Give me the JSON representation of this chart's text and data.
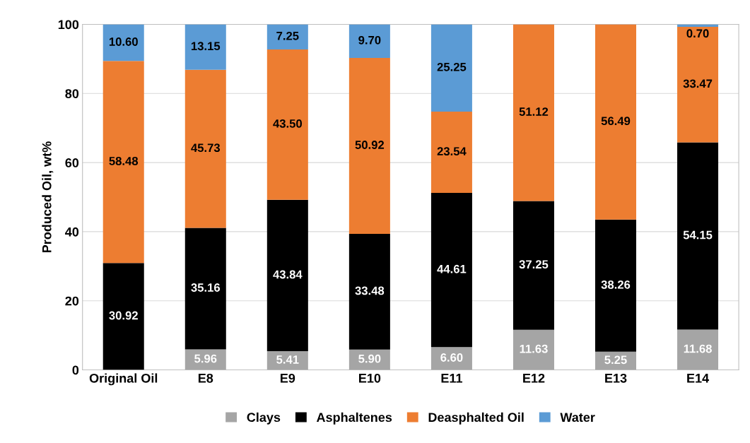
{
  "chart_data": {
    "type": "bar",
    "stacked": true,
    "ylabel": "Produced Oil, wt%",
    "categories": [
      "Original Oil",
      "E8",
      "E9",
      "E10",
      "E11",
      "E12",
      "E13",
      "E14"
    ],
    "series": [
      {
        "name": "Clays",
        "color": "#a5a5a5",
        "values": [
          null,
          5.96,
          5.41,
          5.9,
          6.6,
          11.63,
          5.25,
          11.68
        ],
        "value_labels": [
          null,
          "5.96",
          "5.41",
          "5.90",
          "6.60",
          "11.63",
          "5.25",
          "11.68"
        ]
      },
      {
        "name": "Asphaltenes",
        "color": "#000000",
        "values": [
          30.92,
          35.16,
          43.84,
          33.48,
          44.61,
          37.25,
          38.26,
          54.15
        ],
        "value_labels": [
          "30.92",
          "35.16",
          "43.84",
          "33.48",
          "44.61",
          "37.25",
          "38.26",
          "54.15"
        ]
      },
      {
        "name": "Deasphalted Oil",
        "color": "#ed7d31",
        "values": [
          58.48,
          45.73,
          43.5,
          50.92,
          23.54,
          51.12,
          56.49,
          33.47
        ],
        "value_labels": [
          "58.48",
          "45.73",
          "43.50",
          "50.92",
          "23.54",
          "51.12",
          "56.49",
          "33.47"
        ]
      },
      {
        "name": "Water",
        "color": "#5b9bd5",
        "values": [
          10.6,
          13.15,
          7.25,
          9.7,
          25.25,
          null,
          null,
          0.7
        ],
        "value_labels": [
          "10.60",
          "13.15",
          "7.25",
          "9.70",
          "25.25",
          null,
          null,
          "0.70"
        ]
      }
    ],
    "ylim": [
      0,
      100
    ],
    "yticks": [
      0,
      20,
      40,
      60,
      80,
      100
    ],
    "grid": "y",
    "legend": "bottom"
  }
}
